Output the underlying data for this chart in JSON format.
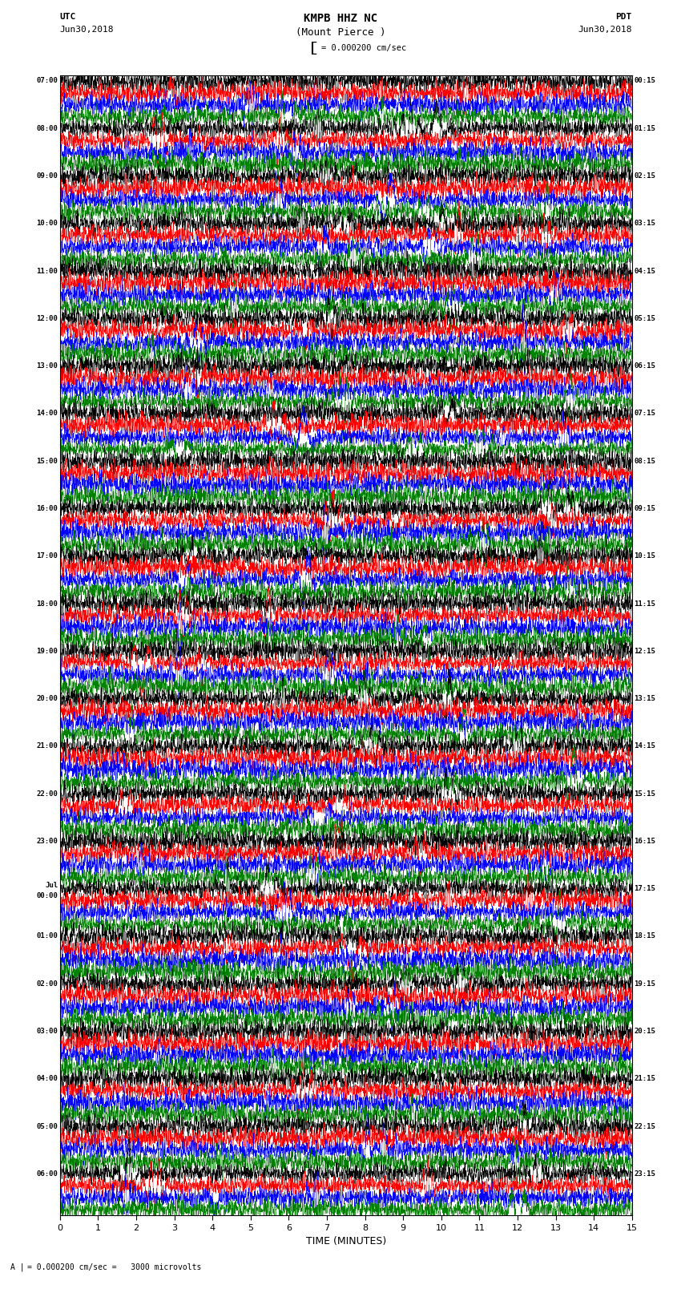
{
  "title_line1": "KMPB HHZ NC",
  "title_line2": "(Mount Pierce )",
  "scale_text": "= 0.000200 cm/sec",
  "utc_label": "UTC",
  "utc_date": "Jun30,2018",
  "pdt_label": "PDT",
  "pdt_date": "Jun30,2018",
  "xlabel": "TIME (MINUTES)",
  "footer": "= 0.000200 cm/sec =   3000 microvolts",
  "footer_prefix": "A",
  "xlim": [
    0,
    15
  ],
  "x_ticks": [
    0,
    1,
    2,
    3,
    4,
    5,
    6,
    7,
    8,
    9,
    10,
    11,
    12,
    13,
    14,
    15
  ],
  "trace_colors": [
    "black",
    "red",
    "blue",
    "green"
  ],
  "background_color": "white",
  "groups": [
    {
      "left_label": "07:00",
      "right_label": "00:15"
    },
    {
      "left_label": "08:00",
      "right_label": "01:15"
    },
    {
      "left_label": "09:00",
      "right_label": "02:15"
    },
    {
      "left_label": "10:00",
      "right_label": "03:15"
    },
    {
      "left_label": "11:00",
      "right_label": "04:15"
    },
    {
      "left_label": "12:00",
      "right_label": "05:15"
    },
    {
      "left_label": "13:00",
      "right_label": "06:15"
    },
    {
      "left_label": "14:00",
      "right_label": "07:15"
    },
    {
      "left_label": "15:00",
      "right_label": "08:15"
    },
    {
      "left_label": "16:00",
      "right_label": "09:15"
    },
    {
      "left_label": "17:00",
      "right_label": "10:15"
    },
    {
      "left_label": "18:00",
      "right_label": "11:15"
    },
    {
      "left_label": "19:00",
      "right_label": "12:15"
    },
    {
      "left_label": "20:00",
      "right_label": "13:15"
    },
    {
      "left_label": "21:00",
      "right_label": "14:15"
    },
    {
      "left_label": "22:00",
      "right_label": "15:15"
    },
    {
      "left_label": "23:00",
      "right_label": "16:15"
    },
    {
      "left_label": "Jul\n00:00",
      "right_label": "17:15"
    },
    {
      "left_label": "01:00",
      "right_label": "18:15"
    },
    {
      "left_label": "02:00",
      "right_label": "19:15"
    },
    {
      "left_label": "03:00",
      "right_label": "20:15"
    },
    {
      "left_label": "04:00",
      "right_label": "21:15"
    },
    {
      "left_label": "05:00",
      "right_label": "22:15"
    },
    {
      "left_label": "06:00",
      "right_label": "23:15"
    }
  ]
}
